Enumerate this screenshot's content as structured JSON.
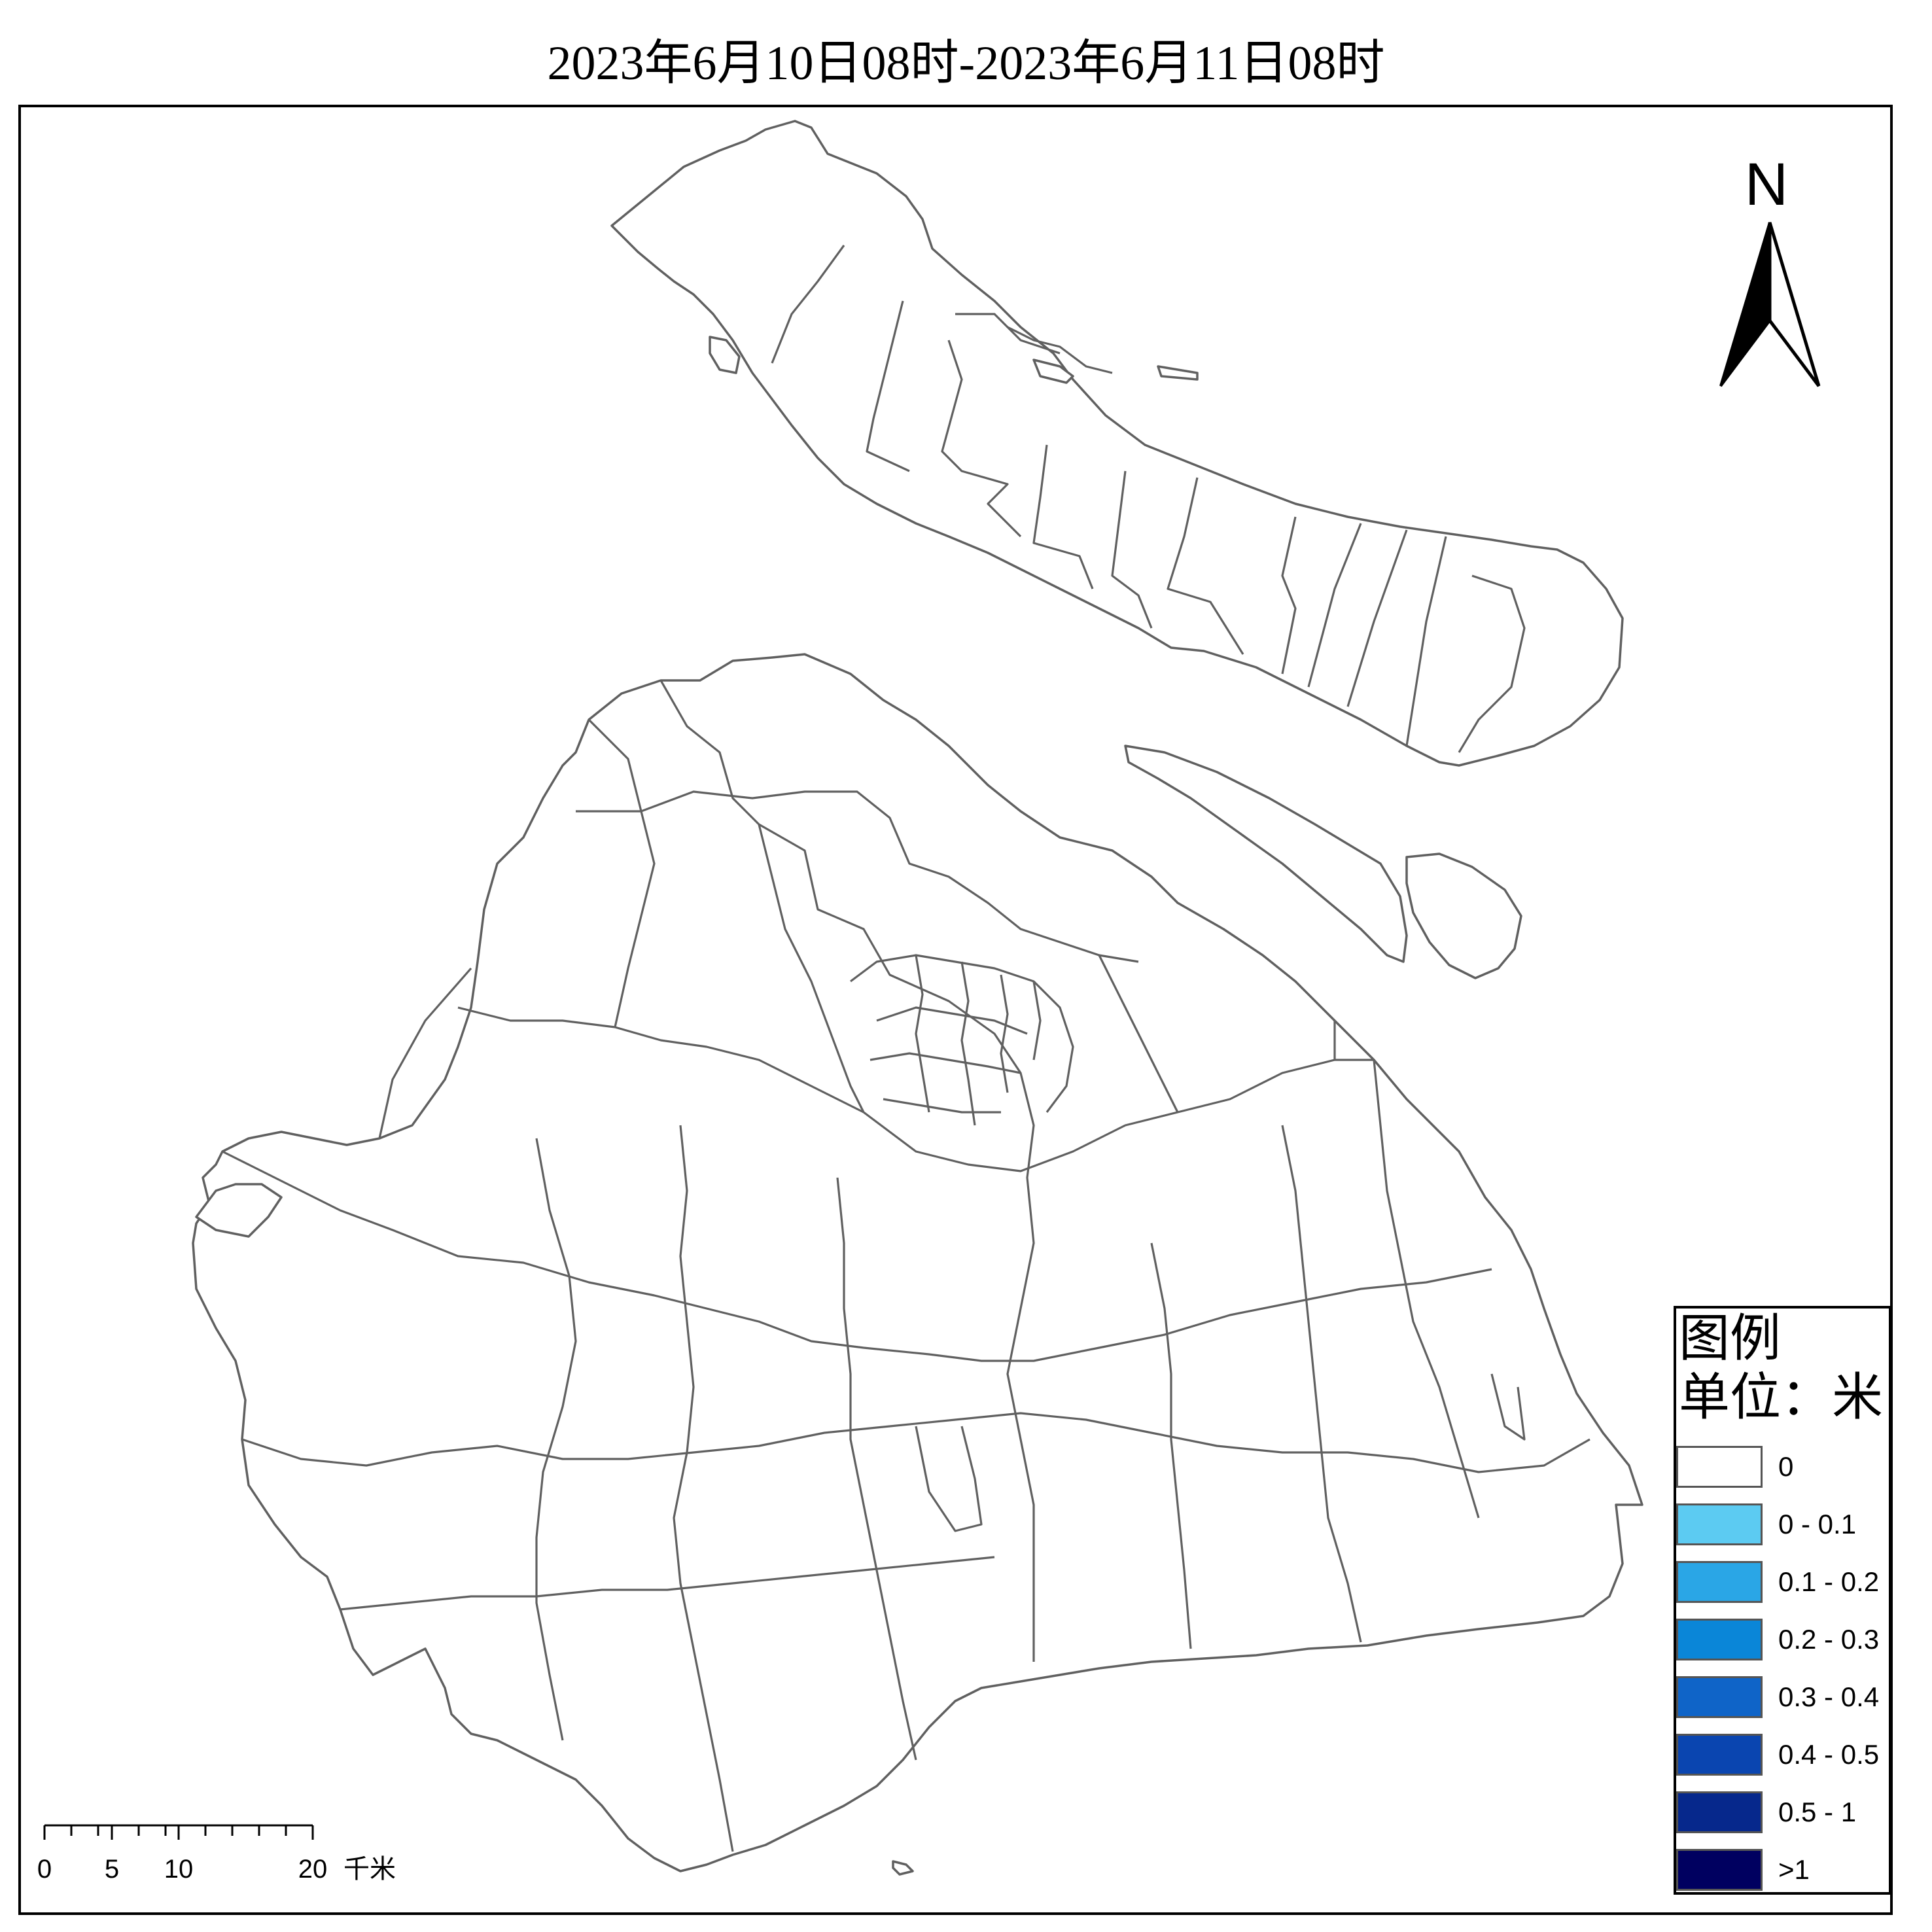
{
  "title": "2023年6月10日08时-2023年6月11日08时",
  "north_label": "N",
  "legend": {
    "title": "图例",
    "unit": "单位：米",
    "items": [
      {
        "label": "0",
        "color": "#ffffff"
      },
      {
        "label": "0 - 0.1",
        "color": "#5ccbf2"
      },
      {
        "label": "0.1 - 0.2",
        "color": "#2aa6e6"
      },
      {
        "label": "0.2 - 0.3",
        "color": "#0a86d8"
      },
      {
        "label": "0.3 - 0.4",
        "color": "#0f64c8"
      },
      {
        "label": "0.4 - 0.5",
        "color": "#0a45b0"
      },
      {
        "label": "0.5 - 1",
        "color": "#06288c"
      },
      {
        "label": ">1",
        "color": "#000060"
      }
    ]
  },
  "scale_bar": {
    "labels": [
      "0",
      "5",
      "10",
      "20"
    ],
    "unit": "千米"
  },
  "colors": {
    "boundary": "#606060",
    "fill": "#ffffff"
  }
}
